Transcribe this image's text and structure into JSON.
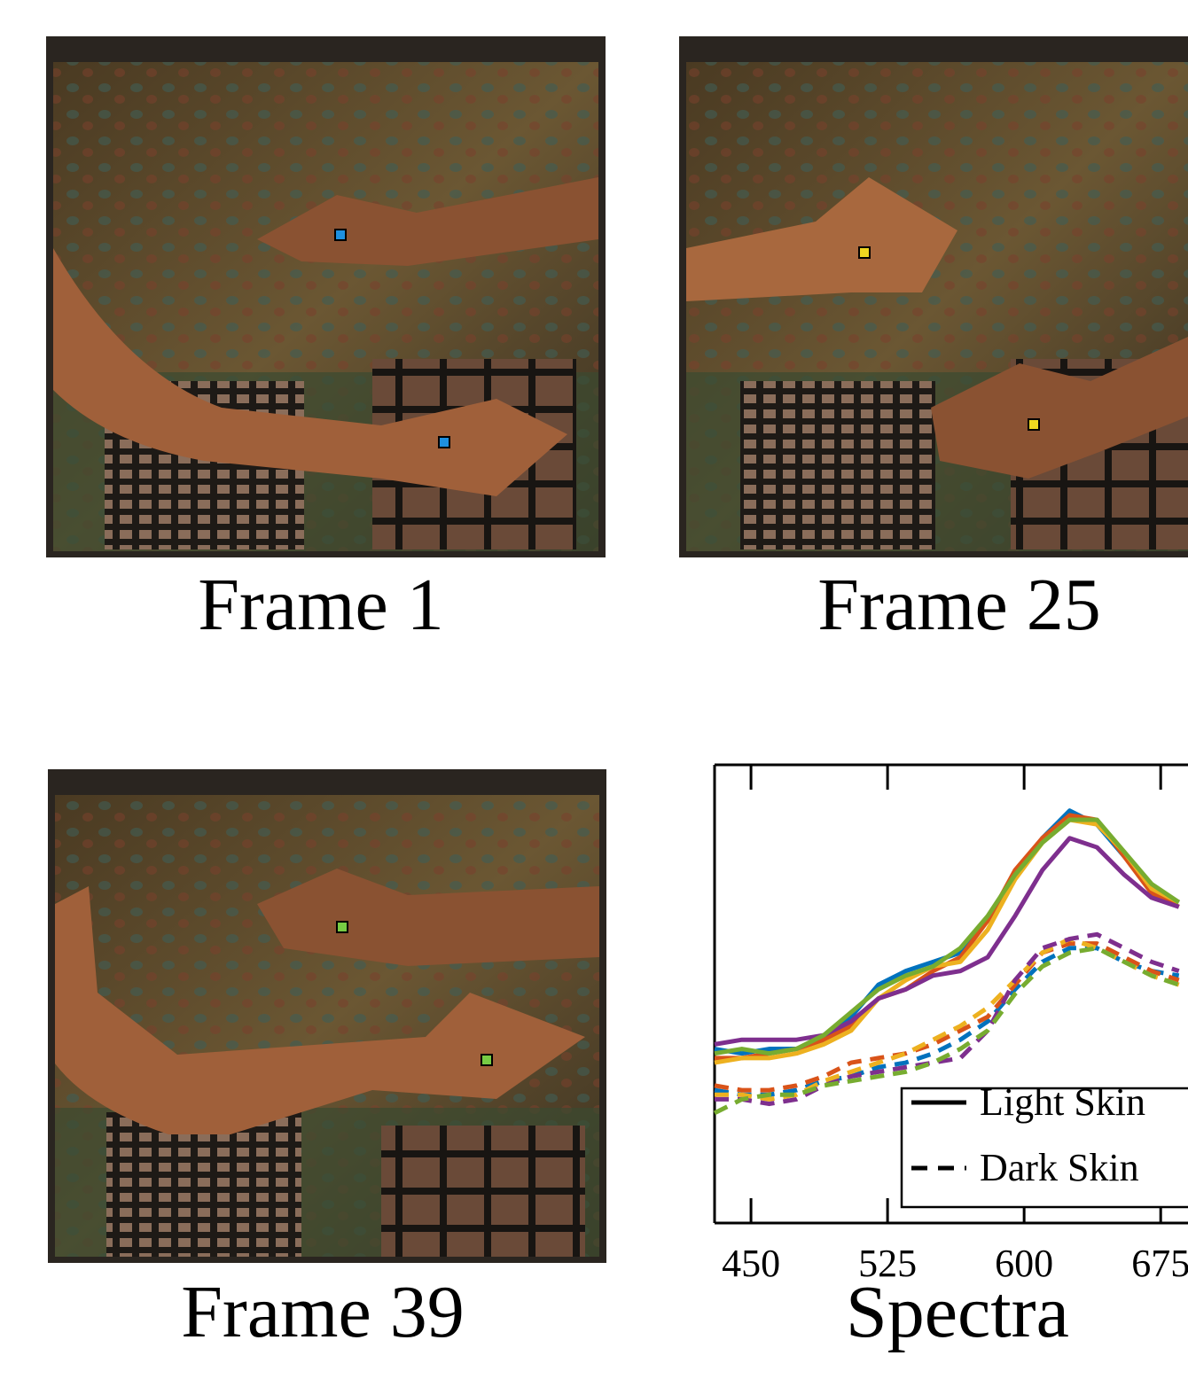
{
  "frames": [
    "Frame 1",
    "Frame 25",
    "Frame 39"
  ],
  "chart_data": {
    "type": "line",
    "title": "Spectra",
    "x": [
      430,
      445,
      460,
      475,
      490,
      505,
      520,
      535,
      550,
      565,
      580,
      595,
      610,
      625,
      640,
      655,
      670,
      685
    ],
    "xlim": [
      430,
      690
    ],
    "xticks": [
      450,
      525,
      600,
      675
    ],
    "ylim": [
      0,
      1
    ],
    "legend": [
      {
        "label": "Light Skin",
        "style": "solid"
      },
      {
        "label": "Dark Skin",
        "style": "dashed"
      }
    ],
    "series": [
      {
        "color": "#0072bd",
        "style": "solid",
        "values": [
          0.38,
          0.37,
          0.38,
          0.38,
          0.4,
          0.45,
          0.52,
          0.55,
          0.57,
          0.59,
          0.66,
          0.76,
          0.84,
          0.9,
          0.87,
          0.8,
          0.73,
          0.7
        ]
      },
      {
        "color": "#d95319",
        "style": "solid",
        "values": [
          0.36,
          0.36,
          0.37,
          0.38,
          0.4,
          0.43,
          0.49,
          0.51,
          0.55,
          0.58,
          0.66,
          0.77,
          0.84,
          0.89,
          0.88,
          0.8,
          0.72,
          0.69
        ]
      },
      {
        "color": "#edb120",
        "style": "solid",
        "values": [
          0.35,
          0.36,
          0.36,
          0.37,
          0.39,
          0.42,
          0.49,
          0.53,
          0.56,
          0.57,
          0.64,
          0.75,
          0.83,
          0.88,
          0.87,
          0.81,
          0.73,
          0.7
        ]
      },
      {
        "color": "#7e2f8e",
        "style": "solid",
        "values": [
          0.39,
          0.4,
          0.4,
          0.4,
          0.41,
          0.44,
          0.49,
          0.51,
          0.54,
          0.55,
          0.58,
          0.67,
          0.77,
          0.84,
          0.82,
          0.76,
          0.71,
          0.69
        ]
      },
      {
        "color": "#77ac30",
        "style": "solid",
        "values": [
          0.37,
          0.38,
          0.37,
          0.38,
          0.41,
          0.46,
          0.51,
          0.54,
          0.56,
          0.6,
          0.67,
          0.76,
          0.83,
          0.88,
          0.88,
          0.81,
          0.74,
          0.7
        ]
      },
      {
        "color": "#0072bd",
        "style": "dashed",
        "values": [
          0.29,
          0.28,
          0.28,
          0.29,
          0.31,
          0.32,
          0.34,
          0.35,
          0.37,
          0.4,
          0.44,
          0.51,
          0.57,
          0.6,
          0.6,
          0.57,
          0.55,
          0.54
        ]
      },
      {
        "color": "#d95319",
        "style": "dashed",
        "values": [
          0.3,
          0.29,
          0.29,
          0.3,
          0.32,
          0.35,
          0.36,
          0.37,
          0.39,
          0.42,
          0.45,
          0.52,
          0.59,
          0.61,
          0.61,
          0.58,
          0.55,
          0.53
        ]
      },
      {
        "color": "#edb120",
        "style": "dashed",
        "values": [
          0.28,
          0.28,
          0.27,
          0.28,
          0.31,
          0.33,
          0.35,
          0.37,
          0.4,
          0.43,
          0.47,
          0.53,
          0.59,
          0.62,
          0.6,
          0.57,
          0.54,
          0.52
        ]
      },
      {
        "color": "#7e2f8e",
        "style": "dashed",
        "values": [
          0.27,
          0.27,
          0.26,
          0.27,
          0.3,
          0.32,
          0.33,
          0.34,
          0.35,
          0.36,
          0.42,
          0.53,
          0.6,
          0.62,
          0.63,
          0.6,
          0.57,
          0.55
        ]
      },
      {
        "color": "#77ac30",
        "style": "dashed",
        "values": [
          0.24,
          0.27,
          0.28,
          0.28,
          0.3,
          0.31,
          0.32,
          0.33,
          0.35,
          0.38,
          0.42,
          0.5,
          0.56,
          0.59,
          0.6,
          0.57,
          0.54,
          0.52
        ]
      }
    ]
  }
}
